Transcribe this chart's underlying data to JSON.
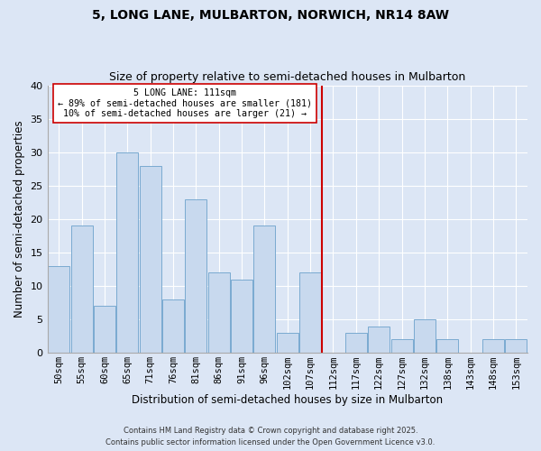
{
  "title": "5, LONG LANE, MULBARTON, NORWICH, NR14 8AW",
  "subtitle": "Size of property relative to semi-detached houses in Mulbarton",
  "xlabel": "Distribution of semi-detached houses by size in Mulbarton",
  "ylabel": "Number of semi-detached properties",
  "bar_color": "#c8d9ee",
  "bar_edge_color": "#7aaad0",
  "grid_color": "#ffffff",
  "bg_color": "#dce6f5",
  "categories": [
    "50sqm",
    "55sqm",
    "60sqm",
    "65sqm",
    "71sqm",
    "76sqm",
    "81sqm",
    "86sqm",
    "91sqm",
    "96sqm",
    "102sqm",
    "107sqm",
    "112sqm",
    "117sqm",
    "122sqm",
    "127sqm",
    "132sqm",
    "138sqm",
    "143sqm",
    "148sqm",
    "153sqm"
  ],
  "values": [
    13,
    19,
    7,
    30,
    28,
    8,
    23,
    12,
    11,
    19,
    3,
    12,
    0,
    3,
    4,
    2,
    5,
    2,
    0,
    2,
    2
  ],
  "marker_value": "112sqm",
  "marker_line_color": "#cc0000",
  "annotation_line1": "5 LONG LANE: 111sqm",
  "annotation_line2": "← 89% of semi-detached houses are smaller (181)",
  "annotation_line3": "10% of semi-detached houses are larger (21) →",
  "ylim": [
    0,
    40
  ],
  "yticks": [
    0,
    5,
    10,
    15,
    20,
    25,
    30,
    35,
    40
  ],
  "footer1": "Contains HM Land Registry data © Crown copyright and database right 2025.",
  "footer2": "Contains public sector information licensed under the Open Government Licence v3.0."
}
